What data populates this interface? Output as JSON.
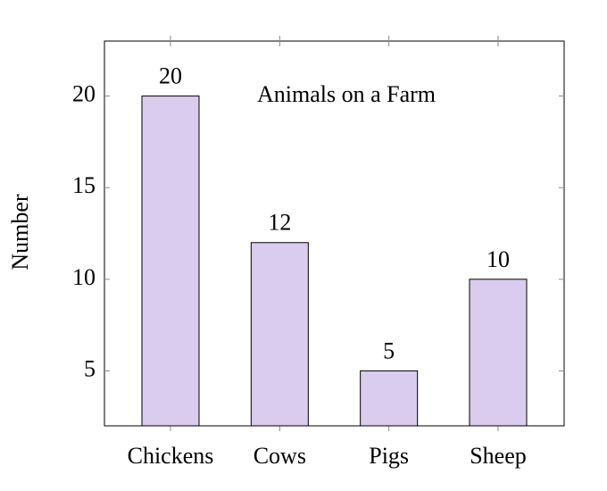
{
  "chart_data": {
    "type": "bar",
    "title": "Animals on a Farm",
    "y_label": "Number",
    "categories": [
      "Chickens",
      "Cows",
      "Pigs",
      "Sheep"
    ],
    "values": [
      20,
      12,
      5,
      10
    ],
    "color": "#d9ccee",
    "title_color": "#2a2aff",
    "ylim": [
      2,
      23
    ],
    "yticks": [
      5,
      10,
      15,
      20
    ]
  }
}
